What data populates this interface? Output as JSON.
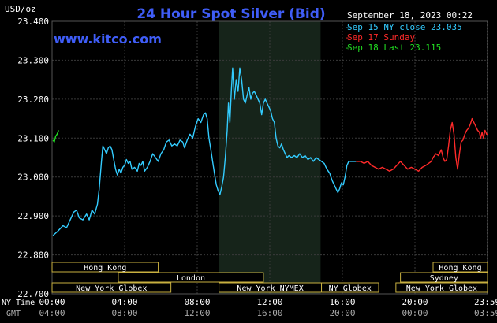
{
  "chart_data": {
    "type": "line",
    "title": "24 Hour Spot Silver (Bid)",
    "watermark": "www.kitco.com",
    "y_unit": "USD/oz",
    "date_label": "September 18, 2023 00:22",
    "ylim": [
      22.7,
      23.4
    ],
    "yticks": [
      "23.400",
      "23.300",
      "23.200",
      "23.100",
      "23.000",
      "22.900",
      "22.800",
      "22.700"
    ],
    "yvals": [
      23.4,
      23.3,
      23.2,
      23.1,
      23.0,
      22.9,
      22.8,
      22.7
    ],
    "xlim": [
      0,
      24
    ],
    "xtick_hours": [
      0,
      4,
      8,
      12,
      16,
      20,
      23.98
    ],
    "ny_time_label": "NY Time",
    "gmt_label": "GMT",
    "ny_ticks": [
      "00:00",
      "04:00",
      "08:00",
      "12:00",
      "16:00",
      "20:00",
      "23:59"
    ],
    "gmt_ticks": [
      "04:00",
      "08:00",
      "12:00",
      "16:00",
      "20:00",
      "00:00",
      "03:59"
    ],
    "grid": true,
    "shaded_region": [
      9.2,
      14.8
    ],
    "legend": [
      {
        "label": "Sep 15 NY close 23.035",
        "color": "#33ccff"
      },
      {
        "label": "Sep 17 Sunday",
        "color": "#ff2a2a"
      },
      {
        "label": "Sep 18 Last 23.115",
        "color": "#22dd22"
      }
    ],
    "series": [
      {
        "name": "Sep 15",
        "color": "#33ccff",
        "points": [
          [
            0.05,
            22.85
          ],
          [
            0.3,
            22.86
          ],
          [
            0.6,
            22.875
          ],
          [
            0.8,
            22.87
          ],
          [
            1.0,
            22.89
          ],
          [
            1.2,
            22.91
          ],
          [
            1.35,
            22.915
          ],
          [
            1.5,
            22.895
          ],
          [
            1.7,
            22.89
          ],
          [
            1.9,
            22.905
          ],
          [
            2.05,
            22.89
          ],
          [
            2.2,
            22.915
          ],
          [
            2.35,
            22.905
          ],
          [
            2.5,
            22.93
          ],
          [
            2.6,
            22.97
          ],
          [
            2.72,
            23.04
          ],
          [
            2.8,
            23.08
          ],
          [
            2.9,
            23.07
          ],
          [
            3.0,
            23.06
          ],
          [
            3.1,
            23.075
          ],
          [
            3.2,
            23.08
          ],
          [
            3.3,
            23.07
          ],
          [
            3.4,
            23.045
          ],
          [
            3.5,
            23.02
          ],
          [
            3.6,
            23.005
          ],
          [
            3.7,
            23.02
          ],
          [
            3.8,
            23.01
          ],
          [
            3.9,
            23.025
          ],
          [
            4.0,
            23.03
          ],
          [
            4.1,
            23.045
          ],
          [
            4.2,
            23.035
          ],
          [
            4.3,
            23.04
          ],
          [
            4.4,
            23.02
          ],
          [
            4.55,
            23.025
          ],
          [
            4.7,
            23.015
          ],
          [
            4.8,
            23.035
          ],
          [
            4.9,
            23.03
          ],
          [
            5.0,
            23.04
          ],
          [
            5.1,
            23.015
          ],
          [
            5.25,
            23.025
          ],
          [
            5.4,
            23.04
          ],
          [
            5.55,
            23.06
          ],
          [
            5.7,
            23.05
          ],
          [
            5.85,
            23.04
          ],
          [
            6.0,
            23.06
          ],
          [
            6.15,
            23.07
          ],
          [
            6.3,
            23.09
          ],
          [
            6.45,
            23.095
          ],
          [
            6.6,
            23.08
          ],
          [
            6.75,
            23.085
          ],
          [
            6.9,
            23.08
          ],
          [
            7.05,
            23.095
          ],
          [
            7.2,
            23.09
          ],
          [
            7.3,
            23.075
          ],
          [
            7.45,
            23.095
          ],
          [
            7.6,
            23.11
          ],
          [
            7.75,
            23.1
          ],
          [
            7.9,
            23.13
          ],
          [
            8.05,
            23.15
          ],
          [
            8.2,
            23.14
          ],
          [
            8.35,
            23.16
          ],
          [
            8.45,
            23.165
          ],
          [
            8.55,
            23.15
          ],
          [
            8.65,
            23.1
          ],
          [
            8.75,
            23.07
          ],
          [
            8.85,
            23.04
          ],
          [
            8.95,
            23.01
          ],
          [
            9.05,
            22.98
          ],
          [
            9.15,
            22.965
          ],
          [
            9.25,
            22.955
          ],
          [
            9.35,
            22.975
          ],
          [
            9.45,
            23.0
          ],
          [
            9.55,
            23.05
          ],
          [
            9.65,
            23.12
          ],
          [
            9.72,
            23.19
          ],
          [
            9.8,
            23.14
          ],
          [
            9.88,
            23.22
          ],
          [
            9.95,
            23.28
          ],
          [
            10.05,
            23.2
          ],
          [
            10.15,
            23.25
          ],
          [
            10.25,
            23.22
          ],
          [
            10.35,
            23.28
          ],
          [
            10.45,
            23.25
          ],
          [
            10.55,
            23.2
          ],
          [
            10.65,
            23.19
          ],
          [
            10.75,
            23.21
          ],
          [
            10.85,
            23.23
          ],
          [
            10.95,
            23.2
          ],
          [
            11.05,
            23.215
          ],
          [
            11.15,
            23.22
          ],
          [
            11.25,
            23.21
          ],
          [
            11.35,
            23.2
          ],
          [
            11.45,
            23.19
          ],
          [
            11.55,
            23.16
          ],
          [
            11.65,
            23.19
          ],
          [
            11.75,
            23.2
          ],
          [
            11.85,
            23.19
          ],
          [
            11.95,
            23.18
          ],
          [
            12.05,
            23.17
          ],
          [
            12.15,
            23.15
          ],
          [
            12.25,
            23.14
          ],
          [
            12.35,
            23.1
          ],
          [
            12.45,
            23.08
          ],
          [
            12.55,
            23.075
          ],
          [
            12.65,
            23.085
          ],
          [
            12.75,
            23.07
          ],
          [
            12.85,
            23.06
          ],
          [
            12.95,
            23.05
          ],
          [
            13.05,
            23.055
          ],
          [
            13.2,
            23.05
          ],
          [
            13.35,
            23.055
          ],
          [
            13.5,
            23.05
          ],
          [
            13.65,
            23.06
          ],
          [
            13.8,
            23.05
          ],
          [
            13.95,
            23.055
          ],
          [
            14.1,
            23.045
          ],
          [
            14.25,
            23.05
          ],
          [
            14.4,
            23.04
          ],
          [
            14.55,
            23.05
          ],
          [
            14.7,
            23.045
          ],
          [
            14.85,
            23.04
          ],
          [
            15.0,
            23.035
          ],
          [
            15.15,
            23.02
          ],
          [
            15.3,
            23.01
          ],
          [
            15.45,
            22.99
          ],
          [
            15.6,
            22.975
          ],
          [
            15.75,
            22.96
          ],
          [
            15.85,
            22.97
          ],
          [
            15.95,
            22.985
          ],
          [
            16.05,
            22.98
          ],
          [
            16.15,
            23.0
          ],
          [
            16.25,
            23.03
          ],
          [
            16.35,
            23.04
          ],
          [
            16.5,
            23.04
          ],
          [
            16.75,
            23.04
          ]
        ]
      },
      {
        "name": "Sep 17",
        "color": "#ff2a2a",
        "points": [
          [
            16.75,
            23.04
          ],
          [
            17.0,
            23.04
          ],
          [
            17.2,
            23.035
          ],
          [
            17.4,
            23.04
          ],
          [
            17.6,
            23.03
          ],
          [
            17.8,
            23.025
          ],
          [
            18.0,
            23.02
          ],
          [
            18.2,
            23.025
          ],
          [
            18.4,
            23.02
          ],
          [
            18.6,
            23.015
          ],
          [
            18.8,
            23.02
          ],
          [
            19.0,
            23.03
          ],
          [
            19.2,
            23.04
          ],
          [
            19.4,
            23.03
          ],
          [
            19.6,
            23.02
          ],
          [
            19.8,
            23.025
          ],
          [
            20.0,
            23.02
          ],
          [
            20.2,
            23.015
          ],
          [
            20.4,
            23.025
          ],
          [
            20.6,
            23.03
          ],
          [
            20.75,
            23.035
          ],
          [
            20.9,
            23.04
          ],
          [
            21.0,
            23.05
          ],
          [
            21.15,
            23.06
          ],
          [
            21.3,
            23.055
          ],
          [
            21.45,
            23.07
          ],
          [
            21.55,
            23.05
          ],
          [
            21.65,
            23.04
          ],
          [
            21.75,
            23.045
          ],
          [
            21.85,
            23.08
          ],
          [
            21.95,
            23.12
          ],
          [
            22.05,
            23.14
          ],
          [
            22.15,
            23.11
          ],
          [
            22.25,
            23.05
          ],
          [
            22.35,
            23.02
          ],
          [
            22.45,
            23.06
          ],
          [
            22.55,
            23.09
          ],
          [
            22.65,
            23.095
          ],
          [
            22.75,
            23.11
          ],
          [
            22.85,
            23.12
          ],
          [
            22.95,
            23.125
          ],
          [
            23.05,
            23.135
          ],
          [
            23.15,
            23.15
          ],
          [
            23.25,
            23.14
          ],
          [
            23.35,
            23.13
          ],
          [
            23.45,
            23.12
          ],
          [
            23.55,
            23.115
          ],
          [
            23.62,
            23.1
          ],
          [
            23.7,
            23.115
          ],
          [
            23.78,
            23.1
          ],
          [
            23.86,
            23.12
          ],
          [
            23.95,
            23.11
          ],
          [
            24.0,
            23.11
          ]
        ]
      },
      {
        "name": "Sep 18",
        "color": "#22dd22",
        "points": [
          [
            0.05,
            23.095
          ],
          [
            0.12,
            23.09
          ],
          [
            0.2,
            23.105
          ],
          [
            0.28,
            23.11
          ],
          [
            0.36,
            23.12
          ]
        ]
      }
    ],
    "sessions_row1": [
      {
        "label": "Hong Kong",
        "start": 0,
        "end": 5.85
      },
      {
        "label": "Hong Kong",
        "start": 21.0,
        "end": 24.0
      }
    ],
    "sessions_row2": [
      {
        "label": "London",
        "start": 3.65,
        "end": 11.65
      },
      {
        "label": "Sydney",
        "start": 19.2,
        "end": 24.0
      }
    ],
    "sessions_row3": [
      {
        "label": "New York Globex",
        "start": 0,
        "end": 6.55
      },
      {
        "label": "New York NYMEX",
        "start": 9.2,
        "end": 14.85
      },
      {
        "label": "NY Globex",
        "start": 14.85,
        "end": 18.0
      },
      {
        "label": "New York Globex",
        "start": 18.95,
        "end": 24.0
      }
    ]
  }
}
